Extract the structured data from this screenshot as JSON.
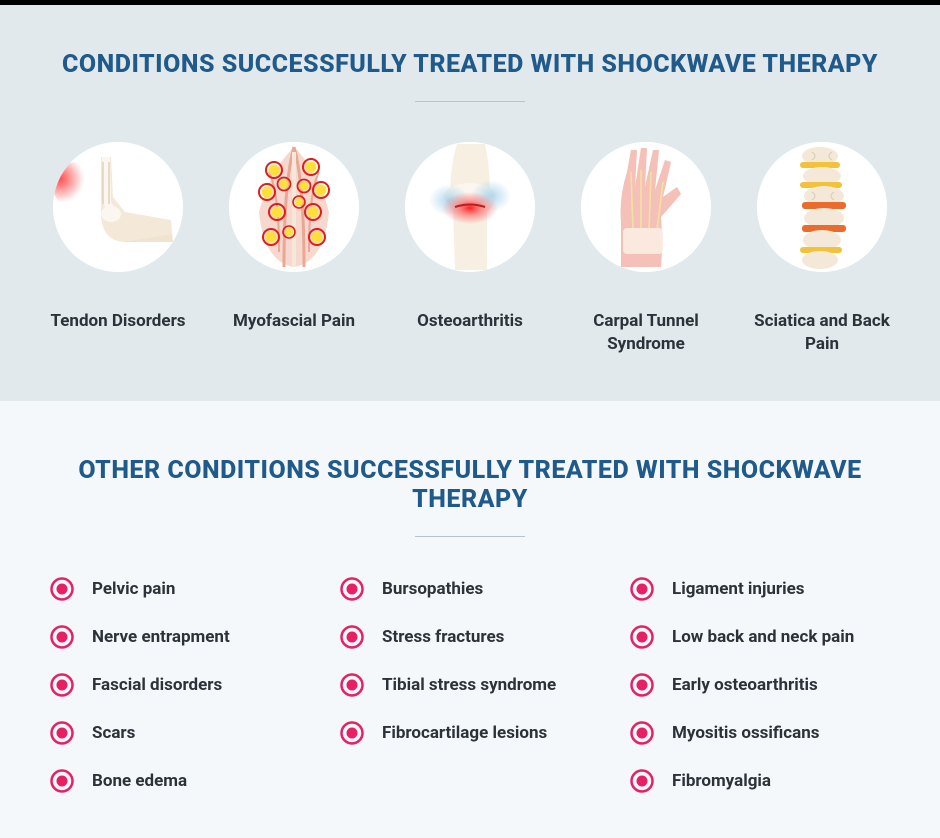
{
  "colors": {
    "heading": "#1f5a8a",
    "text": "#2b323a",
    "bg_main": "#e1e9ec",
    "bg_other": "#f5f8fb",
    "divider": "#b8c4cb",
    "bullet_outer": "#e71f63",
    "bullet_inner": "#e71f63"
  },
  "main": {
    "title": "Conditions Successfully Treated with Shockwave Therapy",
    "items": [
      {
        "label": "Tendon Disorders",
        "icon": "ankle"
      },
      {
        "label": "Myofascial Pain",
        "icon": "back-muscles"
      },
      {
        "label": "Osteoarthritis",
        "icon": "knee"
      },
      {
        "label": "Carpal Tunnel Syndrome",
        "icon": "hand"
      },
      {
        "label": "Sciatica and Back Pain",
        "icon": "spine"
      }
    ]
  },
  "other": {
    "title": "Other Conditions Successfully Treated with Shockwave Therapy",
    "columns": [
      [
        "Pelvic pain",
        "Nerve entrapment",
        "Fascial disorders",
        "Scars",
        "Bone edema"
      ],
      [
        "Bursopathies",
        "Stress fractures",
        "Tibial stress syndrome",
        "Fibrocartilage lesions"
      ],
      [
        "Ligament injuries",
        "Low back and neck pain",
        "Early osteoarthritis",
        "Myositis ossificans",
        "Fibromyalgia"
      ]
    ]
  },
  "typography": {
    "heading_fontsize": 25,
    "heading_weight": 800,
    "label_fontsize": 17,
    "label_weight": 700
  }
}
